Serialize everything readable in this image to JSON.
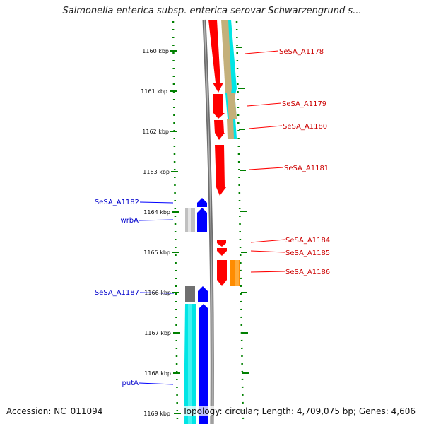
{
  "title": "Salmonella enterica subsp. enterica serovar Schwarzengrund s...",
  "footer": {
    "accession": "Accession: NC_011094",
    "summary": "Topology: circular; Length: 4,709,075 bp; Genes: 4,606"
  },
  "colors": {
    "forward_strand_genes": "#ff0000",
    "reverse_strand_genes": "#0000ff",
    "tick_marks": "#008000",
    "backbone": "#808080"
  },
  "ruler": {
    "unit": "kbp",
    "labels": [
      "1160 kbp",
      "1161 kbp",
      "1162 kbp",
      "1163 kbp",
      "1164 kbp",
      "1165 kbp",
      "1166 kbp",
      "1167 kbp",
      "1168 kbp",
      "1169 kbp"
    ]
  },
  "genes_forward": [
    {
      "name": "SeSA_A1178"
    },
    {
      "name": "SeSA_A1179"
    },
    {
      "name": "SeSA_A1180"
    },
    {
      "name": "SeSA_A1181"
    },
    {
      "name": "SeSA_A1184"
    },
    {
      "name": "SeSA_A1185"
    },
    {
      "name": "SeSA_A1186"
    }
  ],
  "genes_reverse": [
    {
      "name": "SeSA_A1182"
    },
    {
      "name": "wrbA"
    },
    {
      "name": "SeSA_A1187"
    },
    {
      "name": "putA"
    }
  ]
}
